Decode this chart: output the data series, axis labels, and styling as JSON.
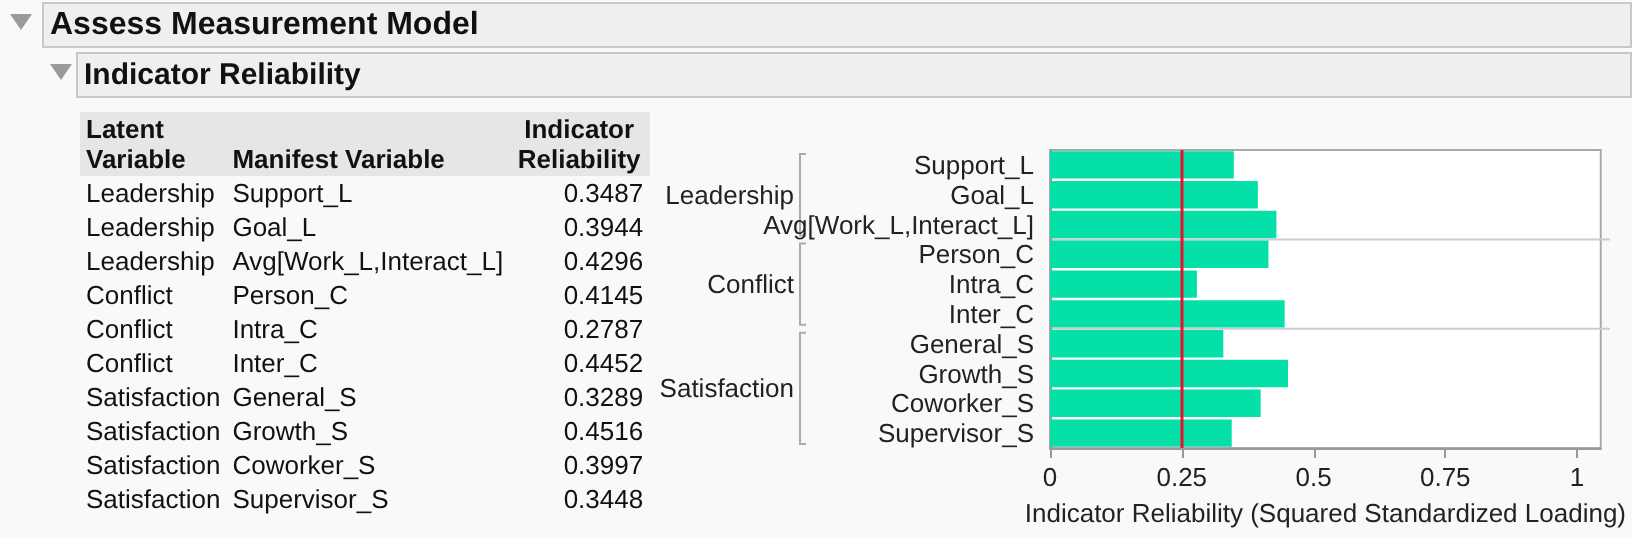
{
  "chart_data": {
    "type": "bar",
    "orientation": "horizontal",
    "title": "Assess Measurement Model",
    "subtitle": "Indicator Reliability",
    "xlabel": "Indicator Reliability (Squared Standardized Loading)",
    "categories": [
      "Support_L",
      "Goal_L",
      "Avg[Work_L,Interact_L]",
      "Person_C",
      "Intra_C",
      "Inter_C",
      "General_S",
      "Growth_S",
      "Coworker_S",
      "Supervisor_S"
    ],
    "values": [
      0.3487,
      0.3944,
      0.4296,
      0.4145,
      0.2787,
      0.4452,
      0.3289,
      0.4516,
      0.3997,
      0.3448
    ],
    "color": "#05e0a8",
    "xlim": [
      0,
      1.045
    ],
    "xticks": [
      0,
      0.25,
      0.5,
      0.75,
      1
    ],
    "grid": false,
    "ref_lines": [
      {
        "axis": "x",
        "value": 0.25,
        "color": "#e8102a"
      }
    ],
    "annotations": [
      "Latent Variable",
      "Manifest Variable",
      "Indicator Reliability",
      "Leadership",
      "0.3487",
      "Leadership",
      "0.3944",
      "Leadership",
      "0.4296",
      "Conflict",
      "0.4145",
      "Conflict",
      "0.2787",
      "Conflict",
      "0.4452",
      "Satisfaction",
      "0.3289",
      "Satisfaction",
      "0.4516",
      "Satisfaction",
      "0.3997",
      "Satisfaction",
      "0.3448"
    ]
  }
}
